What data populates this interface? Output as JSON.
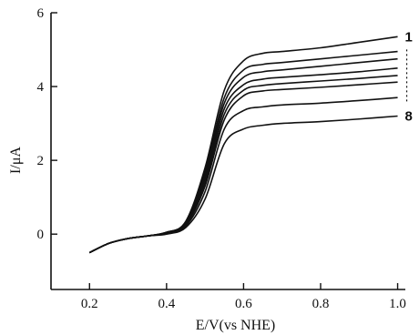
{
  "chart_data": {
    "type": "line",
    "xlabel": "E/V(vs NHE)",
    "ylabel": "I/μA",
    "xlim": [
      0.1,
      1.02
    ],
    "ylim": [
      -1.5,
      6
    ],
    "x_ticks": [
      "0.2",
      "0.4",
      "0.6",
      "0.8",
      "1.0"
    ],
    "y_ticks": [
      "0",
      "2",
      "4",
      "6"
    ],
    "x": [
      0.2,
      0.25,
      0.3,
      0.35,
      0.4,
      0.45,
      0.5,
      0.55,
      0.6,
      0.65,
      0.7,
      0.8,
      0.9,
      1.0
    ],
    "series": [
      {
        "name": "1",
        "values": [
          -0.5,
          -0.25,
          -0.12,
          -0.05,
          0.05,
          0.35,
          1.8,
          3.9,
          4.7,
          4.9,
          4.95,
          5.05,
          5.2,
          5.35
        ]
      },
      {
        "name": "",
        "values": [
          -0.5,
          -0.25,
          -0.12,
          -0.05,
          0.05,
          0.33,
          1.7,
          3.7,
          4.45,
          4.6,
          4.65,
          4.75,
          4.85,
          4.95
        ]
      },
      {
        "name": "",
        "values": [
          -0.5,
          -0.25,
          -0.12,
          -0.05,
          0.04,
          0.31,
          1.6,
          3.55,
          4.25,
          4.4,
          4.45,
          4.55,
          4.65,
          4.75
        ]
      },
      {
        "name": "",
        "values": [
          -0.5,
          -0.25,
          -0.12,
          -0.05,
          0.04,
          0.29,
          1.5,
          3.4,
          4.05,
          4.2,
          4.25,
          4.32,
          4.4,
          4.5
        ]
      },
      {
        "name": "",
        "values": [
          -0.5,
          -0.25,
          -0.12,
          -0.05,
          0.03,
          0.27,
          1.4,
          3.25,
          3.9,
          4.03,
          4.08,
          4.15,
          4.22,
          4.3
        ]
      },
      {
        "name": "",
        "values": [
          -0.5,
          -0.25,
          -0.12,
          -0.05,
          0.03,
          0.25,
          1.3,
          3.1,
          3.75,
          3.88,
          3.92,
          3.98,
          4.05,
          4.12
        ]
      },
      {
        "name": "",
        "values": [
          -0.5,
          -0.25,
          -0.12,
          -0.05,
          0.02,
          0.22,
          1.15,
          2.85,
          3.35,
          3.45,
          3.5,
          3.55,
          3.62,
          3.7
        ]
      },
      {
        "name": "8",
        "values": [
          -0.5,
          -0.25,
          -0.12,
          -0.05,
          0.0,
          0.18,
          0.95,
          2.45,
          2.85,
          2.95,
          3.0,
          3.05,
          3.12,
          3.2
        ]
      }
    ],
    "arrow_from_series": "1",
    "arrow_to_series": "8",
    "grid": false,
    "legend": "none"
  }
}
